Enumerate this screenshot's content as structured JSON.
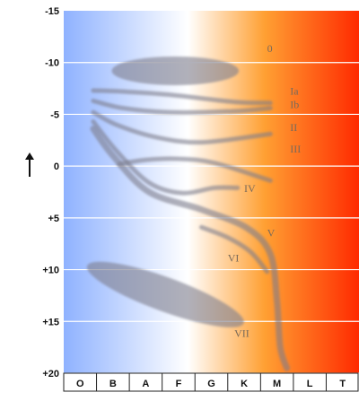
{
  "chart_data": {
    "type": "scatter",
    "title": "",
    "xlabel": "",
    "ylabel": "",
    "y_axis_arrow": "up",
    "x_categories": [
      "O",
      "B",
      "A",
      "F",
      "G",
      "K",
      "M",
      "L",
      "T"
    ],
    "y_ticks": [
      "-15",
      "-10",
      "-5",
      "0",
      "+5",
      "+10",
      "+15",
      "+20"
    ],
    "ylim": [
      -15,
      20
    ],
    "y_inverted": true,
    "grid": "horizontal",
    "background_gradient": [
      "#8fb2ff",
      "#ffffff",
      "#ffa033",
      "#ff2a00"
    ],
    "band_color": "#7d7d8c",
    "luminosity_classes": [
      {
        "label": "0",
        "kind": "region",
        "points": [
          [
            1.9,
            -9.2
          ],
          [
            4.9,
            -9.2
          ]
        ]
      },
      {
        "label": "Ia",
        "points": [
          [
            0.9,
            -7.3
          ],
          [
            1.8,
            -7.2
          ],
          [
            3.2,
            -6.9
          ],
          [
            5.2,
            -6.2
          ],
          [
            6.3,
            -6.1
          ]
        ]
      },
      {
        "label": "Ib",
        "points": [
          [
            0.9,
            -6.3
          ],
          [
            1.8,
            -5.6
          ],
          [
            3.2,
            -5.2
          ],
          [
            5.2,
            -5.3
          ],
          [
            6.3,
            -5.6
          ]
        ]
      },
      {
        "label": "II",
        "points": [
          [
            0.9,
            -5.2
          ],
          [
            1.6,
            -4.0
          ],
          [
            2.8,
            -2.8
          ],
          [
            4.2,
            -2.3
          ],
          [
            6.3,
            -3.1
          ]
        ]
      },
      {
        "label": "III",
        "points": [
          [
            1.7,
            -0.2
          ],
          [
            2.5,
            -0.6
          ],
          [
            3.5,
            -0.7
          ],
          [
            4.6,
            -0.3
          ],
          [
            6.3,
            1.4
          ]
        ]
      },
      {
        "label": "IV",
        "points": [
          [
            0.9,
            -4.3
          ],
          [
            1.6,
            -1.5
          ],
          [
            2.6,
            1.6
          ],
          [
            3.6,
            2.6
          ],
          [
            4.6,
            2.1
          ],
          [
            5.3,
            2.1
          ]
        ]
      },
      {
        "label": "V",
        "points": [
          [
            0.9,
            -3.6
          ],
          [
            1.5,
            -1.0
          ],
          [
            2.6,
            2.5
          ],
          [
            4.2,
            4.2
          ],
          [
            5.6,
            6.0
          ],
          [
            6.3,
            8.5
          ],
          [
            6.5,
            13.0
          ],
          [
            6.6,
            17.5
          ],
          [
            6.8,
            19.5
          ]
        ]
      },
      {
        "label": "VI",
        "points": [
          [
            4.2,
            5.9
          ],
          [
            5.0,
            6.9
          ],
          [
            5.7,
            8.3
          ],
          [
            6.2,
            10.2
          ]
        ]
      },
      {
        "label": "VII",
        "kind": "region",
        "points": [
          [
            1.2,
            10.2
          ],
          [
            5.0,
            14.6
          ]
        ]
      }
    ],
    "luminosity_label_positions": [
      {
        "label": "0",
        "x": 6.2,
        "y": -11.0
      },
      {
        "label": "Ia",
        "x": 6.9,
        "y": -6.9
      },
      {
        "label": "Ib",
        "x": 6.9,
        "y": -5.6
      },
      {
        "label": "II",
        "x": 6.9,
        "y": -3.4
      },
      {
        "label": "III",
        "x": 6.9,
        "y": -1.3
      },
      {
        "label": "IV",
        "x": 5.5,
        "y": 2.5
      },
      {
        "label": "V",
        "x": 6.2,
        "y": 6.8
      },
      {
        "label": "VI",
        "x": 5.0,
        "y": 9.2
      },
      {
        "label": "VII",
        "x": 5.2,
        "y": 16.5
      }
    ]
  }
}
